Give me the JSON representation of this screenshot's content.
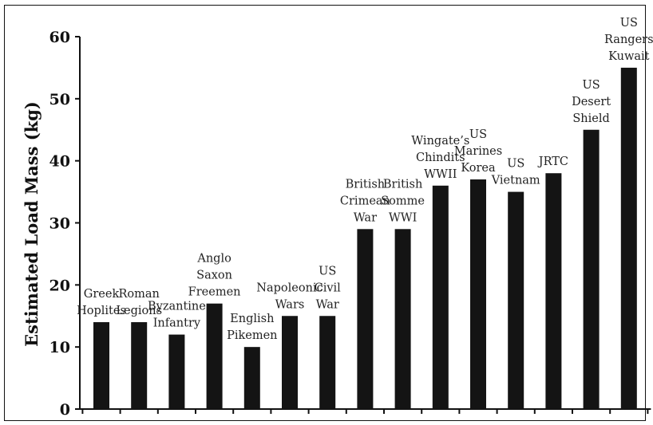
{
  "chart_data": {
    "type": "bar",
    "ylabel": "Estimated Load Mass (kg)",
    "xlabel": "",
    "ylim": [
      0,
      60
    ],
    "yticks": [
      0,
      10,
      20,
      30,
      40,
      50,
      60
    ],
    "grid": false,
    "categories": [
      [
        "Greek",
        "Hoplites"
      ],
      [
        "Roman",
        "Legions"
      ],
      [
        "Byzantine",
        "Infantry"
      ],
      [
        "Anglo",
        "Saxon",
        "Freemen"
      ],
      [
        "English",
        "Pikemen"
      ],
      [
        "Napoleonic",
        "Wars"
      ],
      [
        "US",
        "Civil",
        "War"
      ],
      [
        "British",
        "Crimean",
        "War"
      ],
      [
        "British",
        "Somme",
        "WWI"
      ],
      [
        "Wingate’s",
        "Chindits",
        "WWII"
      ],
      [
        "US",
        "Marines",
        "Korea"
      ],
      [
        "US",
        "Vietnam"
      ],
      [
        "JRTC"
      ],
      [
        "US",
        "Desert",
        "Shield"
      ],
      [
        "US",
        "Rangers",
        "Kuwait"
      ]
    ],
    "values": [
      14,
      14,
      12,
      17,
      10,
      15,
      15,
      29,
      29,
      36,
      37,
      35,
      38,
      45,
      55
    ]
  }
}
